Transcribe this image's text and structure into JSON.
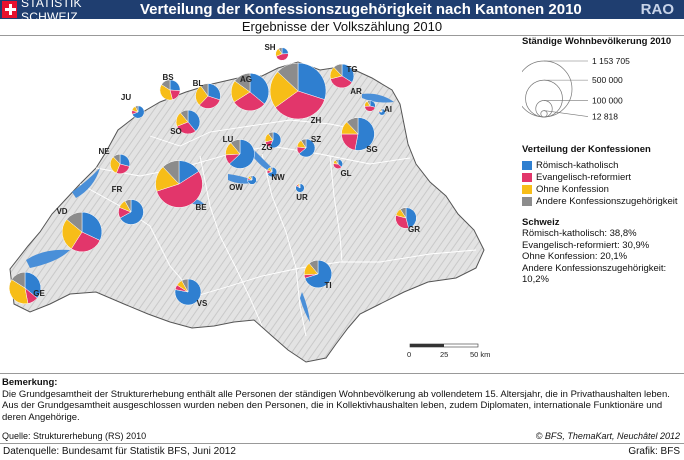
{
  "header": {
    "logo_text": "STATISTIK SCHWEIZ",
    "title": "Verteilung der Konfessionszugehörigkeit nach Kantonen 2010",
    "badge": "RAO"
  },
  "subtitle": "Ergebnisse der Volkszählung 2010",
  "colors": {
    "kath": "#2f7fd0",
    "ref": "#e2366b",
    "ohne": "#f7bd18",
    "andere": "#8c8c8c",
    "lake": "#4a8fd8"
  },
  "map": {
    "scale_labels": [
      "0",
      "25",
      "50 km"
    ],
    "cantons": [
      {
        "code": "SH",
        "pop": 60000,
        "shares": [
          0.24,
          0.45,
          0.22,
          0.09
        ]
      },
      {
        "code": "BS",
        "pop": 150000,
        "shares": [
          0.26,
          0.2,
          0.38,
          0.16
        ]
      },
      {
        "code": "BL",
        "pop": 230000,
        "shares": [
          0.3,
          0.32,
          0.28,
          0.1
        ]
      },
      {
        "code": "AG",
        "pop": 520000,
        "shares": [
          0.36,
          0.3,
          0.19,
          0.15
        ]
      },
      {
        "code": "TG",
        "pop": 210000,
        "shares": [
          0.34,
          0.37,
          0.17,
          0.12
        ]
      },
      {
        "code": "ZH",
        "pop": 1153705,
        "shares": [
          0.3,
          0.35,
          0.22,
          0.13
        ]
      },
      {
        "code": "AR",
        "pop": 43000,
        "shares": [
          0.29,
          0.45,
          0.18,
          0.08
        ]
      },
      {
        "code": "AI",
        "pop": 13000,
        "shares": [
          0.76,
          0.07,
          0.08,
          0.09
        ]
      },
      {
        "code": "JU",
        "pop": 57000,
        "shares": [
          0.69,
          0.1,
          0.14,
          0.07
        ]
      },
      {
        "code": "SO",
        "pop": 210000,
        "shares": [
          0.39,
          0.3,
          0.2,
          0.11
        ]
      },
      {
        "code": "LU",
        "pop": 310000,
        "shares": [
          0.63,
          0.11,
          0.15,
          0.11
        ]
      },
      {
        "code": "ZG",
        "pop": 93000,
        "shares": [
          0.57,
          0.14,
          0.19,
          0.1
        ]
      },
      {
        "code": "SZ",
        "pop": 120000,
        "shares": [
          0.64,
          0.13,
          0.14,
          0.09
        ]
      },
      {
        "code": "SG",
        "pop": 400000,
        "shares": [
          0.53,
          0.22,
          0.13,
          0.12
        ]
      },
      {
        "code": "NE",
        "pop": 140000,
        "shares": [
          0.29,
          0.27,
          0.32,
          0.12
        ]
      },
      {
        "code": "NW",
        "pop": 35000,
        "shares": [
          0.7,
          0.12,
          0.12,
          0.06
        ]
      },
      {
        "code": "GL",
        "pop": 32000,
        "shares": [
          0.36,
          0.4,
          0.15,
          0.09
        ]
      },
      {
        "code": "OW",
        "pop": 29000,
        "shares": [
          0.75,
          0.07,
          0.11,
          0.07
        ]
      },
      {
        "code": "FR",
        "pop": 230000,
        "shares": [
          0.67,
          0.14,
          0.11,
          0.08
        ]
      },
      {
        "code": "BE",
        "pop": 810000,
        "shares": [
          0.16,
          0.54,
          0.18,
          0.12
        ]
      },
      {
        "code": "UR",
        "pop": 28000,
        "shares": [
          0.84,
          0.06,
          0.06,
          0.04
        ]
      },
      {
        "code": "VD",
        "pop": 580000,
        "shares": [
          0.32,
          0.27,
          0.27,
          0.14
        ]
      },
      {
        "code": "GR",
        "pop": 160000,
        "shares": [
          0.46,
          0.33,
          0.12,
          0.09
        ]
      },
      {
        "code": "TI",
        "pop": 280000,
        "shares": [
          0.7,
          0.04,
          0.15,
          0.11
        ]
      },
      {
        "code": "GE",
        "pop": 370000,
        "shares": [
          0.36,
          0.11,
          0.37,
          0.16
        ]
      },
      {
        "code": "VS",
        "pop": 250000,
        "shares": [
          0.78,
          0.06,
          0.08,
          0.08
        ]
      }
    ]
  },
  "legend": {
    "pop_title": "Ständige Wohnbevölkerung 2010",
    "pop_values": [
      {
        "label": "1 153 705",
        "pop": 1153705
      },
      {
        "label": "500 000",
        "pop": 500000
      },
      {
        "label": "100 000",
        "pop": 100000
      },
      {
        "label": "12 818",
        "pop": 12818
      }
    ],
    "conf_title": "Verteilung der Konfessionen",
    "items": [
      {
        "label": "Römisch-katholisch",
        "color": "#2f7fd0"
      },
      {
        "label": "Evangelisch-reformiert",
        "color": "#e2366b"
      },
      {
        "label": "Ohne Konfession",
        "color": "#f7bd18"
      },
      {
        "label": "Andere Konfessionszugehörigkeit",
        "color": "#8c8c8c"
      }
    ],
    "schweiz_title": "Schweiz",
    "schweiz_lines": [
      "Römisch-katholisch: 38,8%",
      "Evangelisch-reformiert: 30,9%",
      "Ohne Konfession: 20,1%",
      "Andere Konfessionszugehörigkeit:",
      "10,2%"
    ]
  },
  "notes": {
    "title": "Bemerkung:",
    "text": "Die Grundgesamtheit der Strukturerhebung enthält alle Personen der ständigen Wohnbevölkerung ab vollendetem 15. Altersjahr, die in Privathaushalten leben. Aus der Grundgesamtheit ausgeschlossen wurden neben den Personen, die in Kollektivhaushalten leben, zudem Diplomaten, internationale Funktionäre und deren Angehörige."
  },
  "source": "Quelle: Strukturerhebung (RS) 2010",
  "copyright": "© BFS, ThemaKart, Neuchâtel 2012",
  "footer": {
    "left": "Datenquelle: Bundesamt für Statistik BFS, Juni 2012",
    "right": "Grafik: BFS"
  }
}
